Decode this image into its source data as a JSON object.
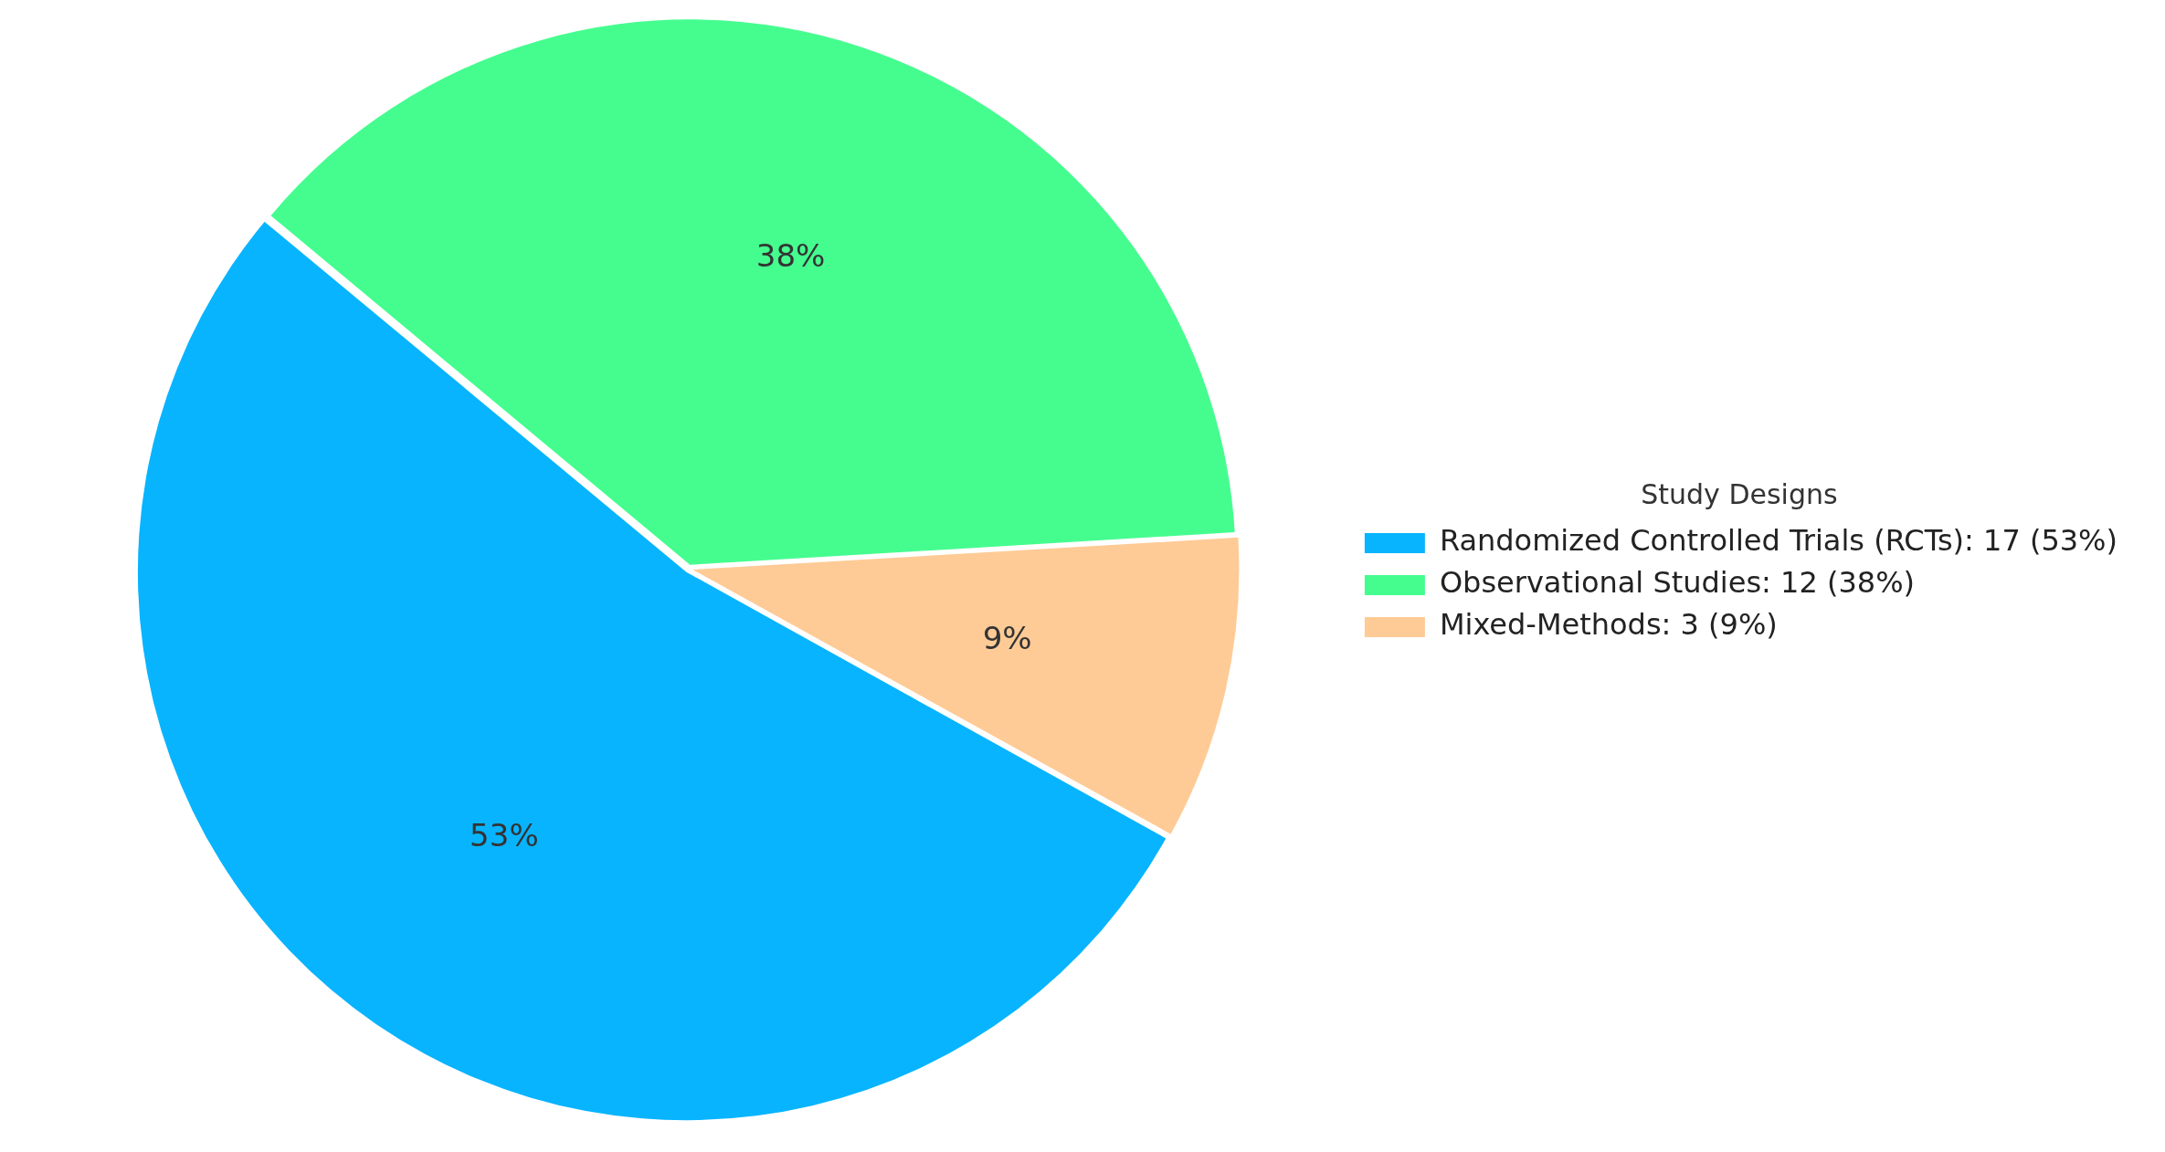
{
  "chart_data": {
    "type": "pie",
    "categories": [
      "Randomized Controlled Trials (RCTs): 17 (53%)",
      "Observational Studies: 12 (38%)",
      "Mixed-Methods: 3 (9%)"
    ],
    "values": [
      53,
      38,
      9
    ],
    "value_labels": [
      "53%",
      "38%",
      "9%"
    ],
    "colors": [
      "#08b4fe",
      "#45fd8f",
      "#fecb96"
    ],
    "legend": "right",
    "legend_title": "Study Designs"
  }
}
